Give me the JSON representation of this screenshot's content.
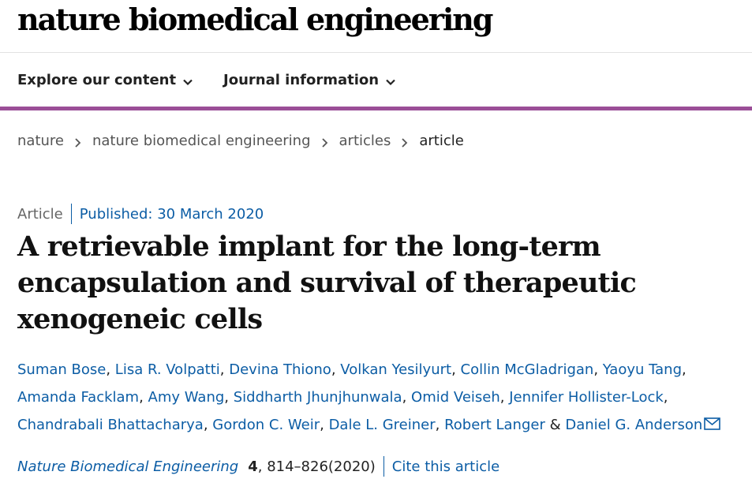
{
  "site": {
    "logo": "nature biomedical engineering"
  },
  "nav": {
    "items": [
      {
        "label": "Explore our content",
        "icon": "chevron-down-icon"
      },
      {
        "label": "Journal information",
        "icon": "chevron-down-icon"
      }
    ],
    "accent_color": "#9b4e97"
  },
  "breadcrumb": [
    "nature",
    "nature biomedical engineering",
    "articles",
    "article"
  ],
  "article": {
    "type": "Article",
    "published": "Published: 30 March 2020",
    "title": "A retrievable implant for the long-term encapsulation and survival of therapeutic xenogeneic cells",
    "authors": [
      "Suman Bose",
      "Lisa R. Volpatti",
      "Devina Thiono",
      "Volkan Yesilyurt",
      "Collin McGladrigan",
      "Yaoyu Tang",
      "Amanda Facklam",
      "Amy Wang",
      "Siddharth Jhunjhunwala",
      "Omid Veiseh",
      "Jennifer Hollister-Lock",
      "Chandrabali Bhattacharya",
      "Gordon C. Weir",
      "Dale L. Greiner",
      "Robert Langer",
      "Daniel G. Anderson"
    ],
    "author_separator": ", ",
    "author_last_separator": " & ",
    "contact_icon": "mail-icon",
    "citation": {
      "journal": "Nature Biomedical Engineering",
      "volume": "4",
      "pages": ", 814–826(2020)",
      "cite_label": "Cite this article"
    }
  },
  "colors": {
    "link": "#0c5da5",
    "text": "#222222"
  }
}
